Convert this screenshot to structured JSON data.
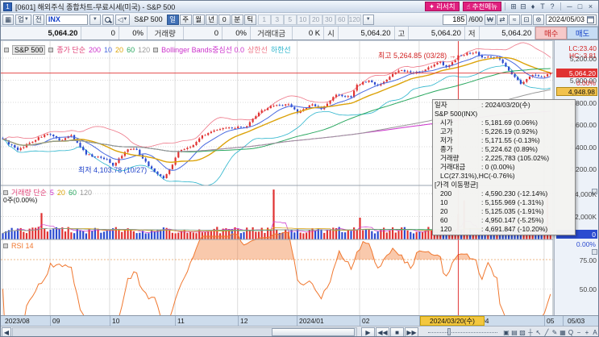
{
  "window": {
    "badge": "1",
    "title": "[0601] 해외주식 종합차트-무료시세(미국) - S&P 500",
    "research_label": "리서치",
    "recommend_label": "추천메뉴",
    "research_icon": "✦",
    "recommend_icon": "☝",
    "tools": [
      {
        "name": "new-window-icon",
        "glyph": "⊞"
      },
      {
        "name": "copy-window-icon",
        "glyph": "⊟"
      },
      {
        "name": "pin-icon",
        "glyph": "♦"
      },
      {
        "name": "font-icon",
        "glyph": "T"
      },
      {
        "name": "help-icon",
        "glyph": "?"
      }
    ],
    "controls": [
      {
        "name": "minimize-button",
        "glyph": "─"
      },
      {
        "name": "maximize-button",
        "glyph": "□"
      },
      {
        "name": "close-button",
        "glyph": "×"
      }
    ]
  },
  "toolbar": {
    "up_label": "업",
    "prev_label": "전",
    "code_value": "INX",
    "symbol_label": "S&P 500",
    "periods": [
      "일",
      "주",
      "월",
      "년",
      "0",
      "분",
      "틱"
    ],
    "selected_period": "일",
    "minutes": [
      "1",
      "3",
      "5",
      "10",
      "20",
      "30",
      "60",
      "120"
    ],
    "bar_count": "185",
    "bar_total": "/600",
    "date_value": "2024/05/03",
    "mid_icons": [
      {
        "name": "won-currency-icon",
        "glyph": "₩"
      },
      {
        "name": "compare-icon",
        "glyph": "⇄"
      },
      {
        "name": "wave-chart-icon",
        "glyph": "≈"
      },
      {
        "name": "save-icon",
        "glyph": "⊡"
      },
      {
        "name": "settings-gear-icon",
        "glyph": "⊛"
      }
    ]
  },
  "quote": {
    "price": "5,064.20",
    "change": "0",
    "change_pct": "0%",
    "volume_label": "거래량",
    "volume": "0",
    "volume_pct": "0%",
    "amount_label": "거래대금",
    "amount": "0 K",
    "open_label": "시",
    "open": "5,064.20",
    "high_label": "고",
    "high": "5,064.20",
    "low_label": "저",
    "low": "5,064.20",
    "buy_label": "매수",
    "sell_label": "매도"
  },
  "price_pane": {
    "legend": {
      "symbol": "S&P 500",
      "ma_label": "종가 단순",
      "ma_periods": [
        "200",
        "10",
        "20",
        "60",
        "120"
      ],
      "boll_label": "Bollinger Bands중심선 0.0",
      "upper_label": "상한선",
      "lower_label": "하한선"
    },
    "high_note": "최고 5,264.85 (03/28)",
    "low_note": "최저 4,103.78 (10/27)",
    "note_arrow": "→",
    "lc_label": "LC:23.40",
    "hc_label": "HC:-3.81",
    "cur_price_label": "5,064.20",
    "cur_pct_label": "0.00%",
    "base_price_label": "4,948.98"
  },
  "volume_pane": {
    "legend_label": "거래량 단순",
    "ma_periods": [
      "5",
      "20",
      "60",
      "120"
    ],
    "sub_label": "0주(0.00%)",
    "badge": "0",
    "badge_pct": "0.00%"
  },
  "rsi_pane": {
    "legend_label": "RSI 14"
  },
  "tooltip": {
    "rows": [
      [
        "일자",
        ": 2024/03/20(수)",
        0
      ],
      [
        "S&P 500(INX)",
        "",
        0
      ],
      [
        "시가",
        ": 5,181.69 (0.06%)",
        1
      ],
      [
        "고가",
        ": 5,226.19 (0.92%)",
        1
      ],
      [
        "저가",
        ": 5,171.55 (-0.13%)",
        1
      ],
      [
        "종가",
        ": 5,224.62 (0.89%)",
        1
      ],
      [
        "거래량",
        ": 2,225,783 (105.02%)",
        1
      ],
      [
        "거래대금",
        ": 0 (0.00%)",
        1
      ],
      [
        "LC(27.31%),HC(-0.76%)",
        "",
        1
      ],
      [
        "[가격 이동평균]",
        "",
        0
      ],
      [
        "200",
        ": 4,590.230 (-12.14%)",
        1
      ],
      [
        "10",
        ": 5,155.969 (-1.31%)",
        1
      ],
      [
        "20",
        ": 5,125.035 (-1.91%)",
        1
      ],
      [
        "60",
        ": 4,950.147 (-5.25%)",
        1
      ],
      [
        "120",
        ": 4,691.847 (-10.20%)",
        1
      ]
    ]
  },
  "time_axis": {
    "highlight_label": "2024/03/20(수)",
    "end_label": "05/03"
  },
  "bottom": {
    "scroll_left": "◀",
    "playback": [
      {
        "name": "play-icon",
        "glyph": "▶"
      },
      {
        "name": "rewind-icon",
        "glyph": "◀◀"
      },
      {
        "name": "stop-icon",
        "glyph": "■"
      },
      {
        "name": "forward-icon",
        "glyph": "▶▶"
      }
    ],
    "tools": [
      {
        "name": "cascade-windows-icon",
        "glyph": "▣"
      },
      {
        "name": "tile-windows-icon",
        "glyph": "▤"
      },
      {
        "name": "chart-area-icon",
        "glyph": "▨"
      },
      {
        "name": "cross-cursor-icon",
        "glyph": "┼"
      },
      {
        "name": "arrow-cursor-icon",
        "glyph": "↖"
      },
      {
        "name": "trendline-icon",
        "glyph": "╱"
      },
      {
        "name": "draw-icon",
        "glyph": "✎"
      },
      {
        "name": "capture-icon",
        "glyph": "▦"
      },
      {
        "name": "zoom-icon",
        "glyph": "Q"
      },
      {
        "name": "zoom-out-icon",
        "glyph": "−"
      },
      {
        "name": "zoom-in-icon",
        "glyph": "+"
      },
      {
        "name": "font-size-icon",
        "glyph": "A"
      }
    ]
  },
  "colors": {
    "up": "#e03232",
    "down": "#2b4bd0",
    "ma_list": [
      "#cc33cc",
      "#4a6ae0",
      "#dca40a",
      "#2aa860",
      "#999999"
    ],
    "vol_ma_list": [
      "#cc33cc",
      "#dca40a",
      "#2aa860",
      "#999999"
    ],
    "ma_label": "#e0457a",
    "boll_center": "#cc33cc",
    "boll_upper": "#ee7788",
    "boll_lower": "#2ab4cc",
    "rsi": "#f07830",
    "crosshair": "#dd2222",
    "badge_red": "#e03232",
    "badge_yellow": "#f2c24e",
    "badge_blue": "#2b4bd0",
    "accent_magenta": "#e01f7e",
    "grid": "#cccccc",
    "month_grid": "#dcdcdc"
  },
  "chart_data": {
    "type": "candlestick",
    "symbol": "S&P 500 (INX)",
    "bar_count": 185,
    "visible_range": "2023/08 - 2024/05/03",
    "crosshair_index": 153,
    "crosshair_date": "2024/03/20",
    "last_close": 5064.2,
    "period_high": 5264.85,
    "period_low": 4103.78,
    "anchors": [
      [
        0,
        4468
      ],
      [
        5,
        4370
      ],
      [
        9,
        4436
      ],
      [
        14,
        4508
      ],
      [
        15,
        4516
      ],
      [
        19,
        4457
      ],
      [
        23,
        4505
      ],
      [
        28,
        4330
      ],
      [
        35,
        4288
      ],
      [
        37,
        4229
      ],
      [
        42,
        4377
      ],
      [
        45,
        4373
      ],
      [
        49,
        4224
      ],
      [
        53,
        4137
      ],
      [
        54,
        4117
      ],
      [
        57,
        4238
      ],
      [
        59,
        4358
      ],
      [
        64,
        4415
      ],
      [
        67,
        4503
      ],
      [
        73,
        4559
      ],
      [
        77,
        4568
      ],
      [
        82,
        4586
      ],
      [
        86,
        4707
      ],
      [
        90,
        4768
      ],
      [
        96,
        4783
      ],
      [
        99,
        4705
      ],
      [
        104,
        4783
      ],
      [
        107,
        4739
      ],
      [
        112,
        4869
      ],
      [
        117,
        4846
      ],
      [
        119,
        4959
      ],
      [
        123,
        4998
      ],
      [
        126,
        4953
      ],
      [
        133,
        5087
      ],
      [
        137,
        5070
      ],
      [
        141,
        5078
      ],
      [
        144,
        5124
      ],
      [
        147,
        5165
      ],
      [
        149,
        5117
      ],
      [
        152,
        5178
      ],
      [
        153,
        5224.62
      ],
      [
        159,
        5254
      ],
      [
        161,
        5206
      ],
      [
        166,
        5210
      ],
      [
        169,
        5123
      ],
      [
        174,
        4967
      ],
      [
        178,
        5048
      ],
      [
        182,
        5036
      ],
      [
        184,
        5064.2
      ]
    ],
    "specials": {
      "54": {
        "low": 4103.78
      },
      "153": {
        "open": 5181.69,
        "high": 5226.19,
        "low": 5171.55,
        "close": 5224.62
      },
      "159": {
        "high": 5264.85
      }
    },
    "volume_spikes_k": {
      "13": 2300,
      "91": 4350,
      "120": 1900,
      "155": 3400,
      "183": 4100
    },
    "volume_at_crosshair_k": 2225.783,
    "month_ticks": [
      {
        "label": "2023/08",
        "index": 0
      },
      {
        "label": "09",
        "index": 16
      },
      {
        "label": "10",
        "index": 36
      },
      {
        "label": "11",
        "index": 58
      },
      {
        "label": "12",
        "index": 79
      },
      {
        "label": "2024/01",
        "index": 99
      },
      {
        "label": "02",
        "index": 120
      },
      {
        "label": "03",
        "index": 140
      },
      {
        "label": "04",
        "index": 160
      },
      {
        "label": "05",
        "index": 182
      }
    ],
    "price_axis": [
      {
        "v": 5200,
        "label": "5,200.00"
      },
      {
        "v": 5000,
        "label": "5,000.00"
      },
      {
        "v": 4800,
        "label": "4,800.00"
      },
      {
        "v": 4600,
        "label": "4,600.00"
      },
      {
        "v": 4400,
        "label": "4,400.00"
      },
      {
        "v": 4200,
        "label": "4,200.00"
      }
    ],
    "volume_axis": [
      {
        "v": 4000,
        "label": "4,000K"
      },
      {
        "v": 2000,
        "label": "2,000K"
      }
    ],
    "rsi_axis": [
      {
        "v": 75,
        "label": "75.00"
      },
      {
        "v": 50,
        "label": "50.00"
      }
    ],
    "ma_windows": [
      200,
      10,
      20,
      60,
      120
    ],
    "vol_ma_windows": [
      5,
      20,
      60,
      120
    ],
    "rsi_period": 14
  }
}
